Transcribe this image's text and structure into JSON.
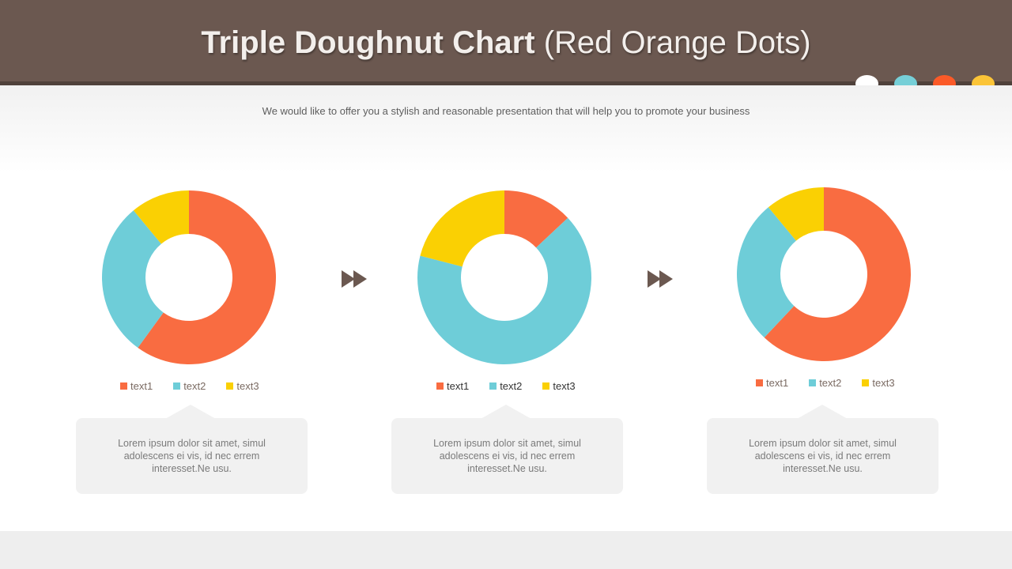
{
  "slide": {
    "title_bold": "Triple Doughnut Chart",
    "title_rest": "(Red Orange Dots)",
    "subtitle": "We would like to offer you a stylish and reasonable presentation that will help you to promote your business",
    "dot_colors": [
      "#ffffff",
      "#76cfd7",
      "#fb5a28",
      "#fbc437"
    ],
    "arrow_icon": "double-chevron-right-icon",
    "arrow_color": "#6b5850",
    "cards": [
      {
        "text": "Lorem ipsum dolor sit amet, simul adolescens ei vis, id nec errem interesset.Ne usu."
      },
      {
        "text": "Lorem ipsum dolor sit amet, simul adolescens ei vis, id nec errem interesset.Ne usu."
      },
      {
        "text": "Lorem ipsum dolor sit amet, simul adolescens ei vis, id nec errem interesset.Ne usu."
      }
    ]
  },
  "chart_data": [
    {
      "type": "doughnut",
      "categories": [
        "text1",
        "text2",
        "text3"
      ],
      "values": [
        60,
        29,
        11
      ],
      "colors": [
        "#f96c41",
        "#6ecdd8",
        "#fad003"
      ],
      "legend": "bottom"
    },
    {
      "type": "doughnut",
      "categories": [
        "text1",
        "text2",
        "text3"
      ],
      "values": [
        13,
        66,
        21
      ],
      "colors": [
        "#f96c41",
        "#6ecdd8",
        "#fad003"
      ],
      "legend": "bottom"
    },
    {
      "type": "doughnut",
      "categories": [
        "text1",
        "text2",
        "text3"
      ],
      "values": [
        62,
        27,
        11
      ],
      "colors": [
        "#f96c41",
        "#6ecdd8",
        "#fad003"
      ],
      "legend": "bottom"
    }
  ]
}
